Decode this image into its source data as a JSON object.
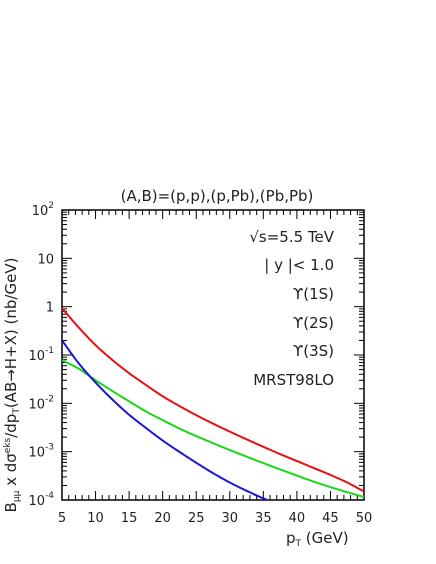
{
  "chart_data": {
    "type": "line",
    "title": "(A,B)=(p,p),(p,Pb),(Pb,Pb)",
    "xlabel": "p_T (GeV)",
    "ylabel": "B_μμ x dσ^eks/dp_T(AB→H+X) (nb/GeV)",
    "xlim": [
      5,
      50
    ],
    "ylim": [
      0.0001,
      100
    ],
    "yscale": "log",
    "grid": false,
    "x_ticks": [
      "5",
      "10",
      "15",
      "20",
      "25",
      "30",
      "35",
      "40",
      "45",
      "50"
    ],
    "y_ticks": [
      {
        "base": "10",
        "exp": "2"
      },
      {
        "base": "10",
        "exp": ""
      },
      {
        "base": "1",
        "exp": ""
      },
      {
        "base": "10",
        "exp": "-1"
      },
      {
        "base": "10",
        "exp": "-2"
      },
      {
        "base": "10",
        "exp": "-3"
      },
      {
        "base": "10",
        "exp": "-4"
      }
    ],
    "annotations": [
      "√s=5.5 TeV",
      "| y |< 1.0",
      "MRST98LO"
    ],
    "series": [
      {
        "name": "ϒ(1S)",
        "color": "#e81010",
        "x": [
          5,
          7.5,
          10,
          12.5,
          15,
          17.5,
          20,
          22.5,
          25,
          27.5,
          30,
          32.5,
          35,
          37.5,
          40,
          42.5,
          45,
          47.5,
          50
        ],
        "y": [
          0.93,
          0.37,
          0.16,
          0.079,
          0.042,
          0.024,
          0.014,
          0.0088,
          0.0057,
          0.0038,
          0.0026,
          0.0018,
          0.00126,
          0.00089,
          0.00064,
          0.00046,
          0.00033,
          0.00023,
          0.00015
        ]
      },
      {
        "name": "ϒ(2S)",
        "color": "#18d818",
        "x": [
          5,
          7.5,
          10,
          12.5,
          15,
          17.5,
          20,
          22.5,
          25,
          27.5,
          30,
          32.5,
          35,
          37.5,
          40,
          42.5,
          45,
          47.5,
          50
        ],
        "y": [
          0.078,
          0.052,
          0.03,
          0.018,
          0.011,
          0.0068,
          0.0045,
          0.003,
          0.0021,
          0.0015,
          0.00108,
          0.00079,
          0.00058,
          0.00043,
          0.00032,
          0.00024,
          0.000185,
          0.000145,
          0.000115
        ]
      },
      {
        "name": "ϒ(3S)",
        "color": "#1818d8",
        "x": [
          5,
          7.5,
          10,
          12.5,
          15,
          17.5,
          20,
          22.5,
          25,
          27.5,
          30,
          32.5,
          35,
          37.5
        ],
        "y": [
          0.2,
          0.067,
          0.027,
          0.012,
          0.0058,
          0.0031,
          0.0017,
          0.00099,
          0.00059,
          0.00036,
          0.00023,
          0.000155,
          0.000108,
          7.8e-05
        ]
      }
    ]
  }
}
